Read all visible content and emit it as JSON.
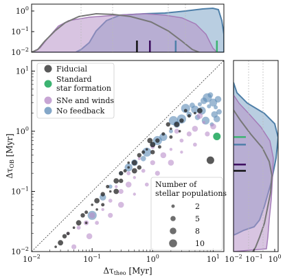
{
  "chart_data": {
    "type": "scatter",
    "x_scale": "log",
    "y_scale": "log",
    "xlim": [
      0.01,
      15
    ],
    "ylim": [
      0.01,
      15
    ],
    "xlabel": "Δτ_theo [Myr]",
    "ylabel": "Δτ_OB [Myr]",
    "x_ticks": [
      "10^-2",
      "10^-1",
      "10^0",
      "10^1"
    ],
    "y_ticks": [
      "10^-2",
      "10^-1",
      "10^0",
      "10^1"
    ],
    "one_to_one_line": true,
    "series": [
      {
        "name": "Fiducial",
        "color": "#222222",
        "points": [
          [
            0.025,
            0.012
          ],
          [
            0.03,
            0.014
          ],
          [
            0.035,
            0.018
          ],
          [
            0.04,
            0.02
          ],
          [
            0.05,
            0.025
          ],
          [
            0.06,
            0.03
          ],
          [
            0.07,
            0.04
          ],
          [
            0.08,
            0.045
          ],
          [
            0.1,
            0.06
          ],
          [
            0.12,
            0.07
          ],
          [
            0.15,
            0.09
          ],
          [
            0.18,
            0.12
          ],
          [
            0.2,
            0.1
          ],
          [
            0.25,
            0.15
          ],
          [
            0.3,
            0.2
          ],
          [
            0.35,
            0.22
          ],
          [
            0.4,
            0.25
          ],
          [
            0.5,
            0.3
          ],
          [
            0.6,
            0.4
          ],
          [
            0.7,
            0.45
          ],
          [
            0.8,
            0.5
          ],
          [
            1.0,
            0.6
          ],
          [
            1.2,
            0.7
          ],
          [
            1.5,
            0.9
          ],
          [
            2.0,
            1.1
          ],
          [
            2.5,
            1.3
          ],
          [
            3.0,
            1.5
          ],
          [
            4.0,
            1.8
          ],
          [
            5.0,
            2.0
          ],
          [
            6.0,
            2.2
          ],
          [
            0.3,
            0.15
          ],
          [
            0.15,
            0.06
          ],
          [
            0.08,
            0.03
          ],
          [
            0.5,
            0.22
          ],
          [
            1.0,
            0.45
          ],
          [
            2.0,
            0.8
          ],
          [
            0.4,
            0.3
          ],
          [
            0.9,
            0.7
          ],
          [
            1.8,
            1.3
          ],
          [
            3.5,
            2.2
          ],
          [
            0.12,
            0.05
          ],
          [
            0.25,
            0.1
          ],
          [
            0.6,
            0.25
          ],
          [
            1.3,
            0.55
          ],
          [
            2.8,
            1.0
          ],
          [
            9.0,
            0.33
          ]
        ]
      },
      {
        "name": "Standard star formation",
        "color": "#3cb371",
        "points": [
          [
            11.5,
            0.82
          ]
        ]
      },
      {
        "name": "SNe and winds",
        "color": "#b98ec9",
        "points": [
          [
            0.04,
            0.02
          ],
          [
            0.06,
            0.025
          ],
          [
            0.08,
            0.03
          ],
          [
            0.1,
            0.04
          ],
          [
            0.15,
            0.05
          ],
          [
            0.2,
            0.07
          ],
          [
            0.3,
            0.1
          ],
          [
            0.4,
            0.13
          ],
          [
            0.5,
            0.17
          ],
          [
            0.7,
            0.22
          ],
          [
            1.0,
            0.3
          ],
          [
            1.5,
            0.4
          ],
          [
            2.0,
            0.5
          ],
          [
            3.0,
            0.7
          ],
          [
            4.0,
            0.9
          ],
          [
            5.0,
            1.1
          ],
          [
            7.0,
            1.4
          ],
          [
            0.12,
            0.03
          ],
          [
            0.2,
            0.04
          ],
          [
            0.3,
            0.06
          ],
          [
            0.5,
            0.09
          ],
          [
            0.8,
            0.13
          ],
          [
            1.2,
            0.2
          ],
          [
            2.0,
            0.3
          ],
          [
            3.0,
            0.45
          ],
          [
            5.0,
            0.6
          ],
          [
            8.0,
            0.9
          ],
          [
            10.0,
            1.2
          ],
          [
            0.6,
            0.35
          ],
          [
            1.0,
            0.55
          ],
          [
            2.5,
            1.0
          ],
          [
            6.0,
            1.8
          ],
          [
            0.25,
            0.12
          ],
          [
            0.4,
            0.2
          ],
          [
            0.05,
            0.012
          ],
          [
            0.09,
            0.018
          ]
        ]
      },
      {
        "name": "No feedback",
        "color": "#5b8ab5",
        "points": [
          [
            0.3,
            0.2
          ],
          [
            0.5,
            0.3
          ],
          [
            0.8,
            0.45
          ],
          [
            1.0,
            0.6
          ],
          [
            1.5,
            0.8
          ],
          [
            2.0,
            1.0
          ],
          [
            2.5,
            1.3
          ],
          [
            3.0,
            1.6
          ],
          [
            4.0,
            1.9
          ],
          [
            5.0,
            2.3
          ],
          [
            6.0,
            2.8
          ],
          [
            7.0,
            3.2
          ],
          [
            8.0,
            3.6
          ],
          [
            9.0,
            4.0
          ],
          [
            10.0,
            3.0
          ],
          [
            11.0,
            2.5
          ],
          [
            12.0,
            3.4
          ],
          [
            3.5,
            2.4
          ],
          [
            4.5,
            2.7
          ],
          [
            6.5,
            2.2
          ],
          [
            8.5,
            2.6
          ],
          [
            10.5,
            1.9
          ],
          [
            2.2,
            1.5
          ],
          [
            5.5,
            1.7
          ],
          [
            7.5,
            1.5
          ],
          [
            9.5,
            1.3
          ],
          [
            11.5,
            1.6
          ],
          [
            1.2,
            0.7
          ],
          [
            0.7,
            0.35
          ],
          [
            0.4,
            0.25
          ],
          [
            0.2,
            0.12
          ],
          [
            0.15,
            0.08
          ],
          [
            0.1,
            0.04
          ],
          [
            12.5,
            2.1
          ]
        ]
      }
    ],
    "legend_entries": [
      "Fiducial",
      "Standard\nstar formation",
      "SNe and winds",
      "No feedback"
    ],
    "size_legend_title": "Number of\nstellar populations",
    "size_legend_values": [
      "2",
      "5",
      "8",
      "10"
    ],
    "top_marginal": {
      "y_scale": "log",
      "y_ticks": [
        "10^-2",
        "10^-1",
        "10^0"
      ],
      "medians_myr": [
        0.55,
        0.9,
        2.4,
        11.5
      ]
    },
    "right_marginal": {
      "x_scale": "log",
      "x_ticks": [
        "10^-2",
        "10^-1",
        "10^0"
      ],
      "medians_myr": [
        0.8,
        0.6,
        0.28,
        0.22
      ]
    }
  }
}
